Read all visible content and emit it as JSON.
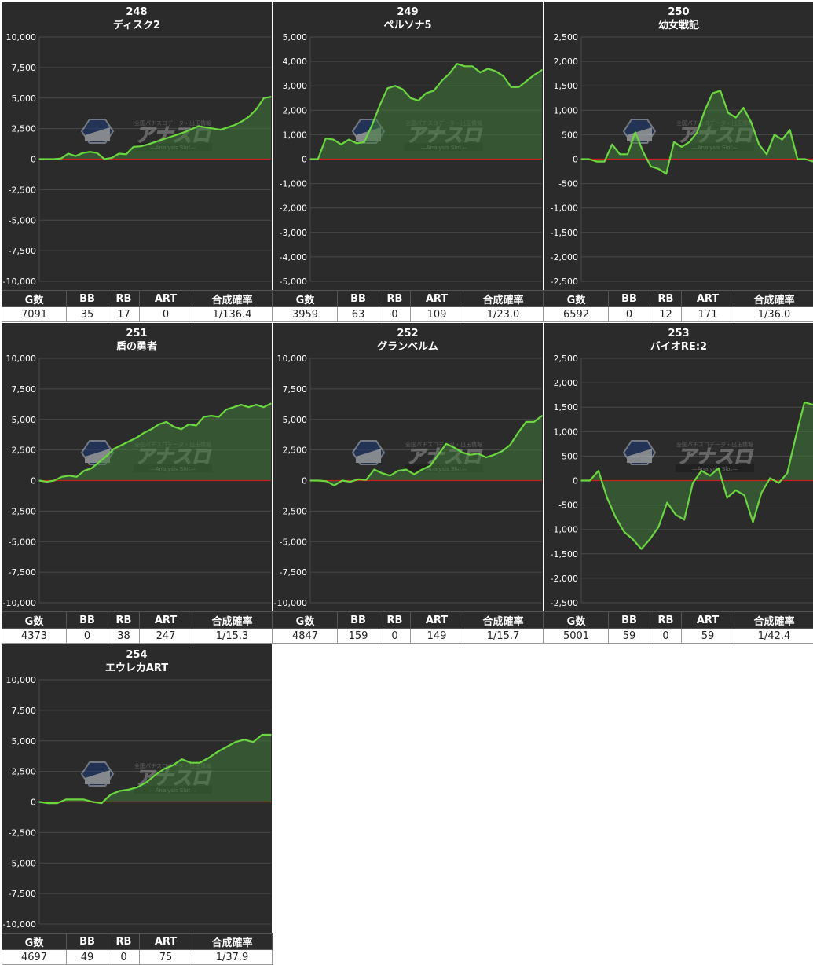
{
  "colors": {
    "line": "#6bd640",
    "fill": "#3f7a3a",
    "zero": "#c81e1e",
    "bg": "#2b2b2b",
    "grid": "#4a4a4a"
  },
  "watermark": {
    "brand": "アナスロ",
    "sub": "—Analysis Slot—",
    "tagline": "全国パチスロデータ・出玉情報"
  },
  "table_headers": [
    "G数",
    "BB",
    "RB",
    "ART",
    "合成確率"
  ],
  "chart_data": [
    {
      "type": "line",
      "number": "248",
      "name": "ディスク2",
      "ylim": [
        -10000,
        10000
      ],
      "yticks": [
        "10,000",
        "7,500",
        "5,000",
        "2,500",
        "0",
        "-2,500",
        "-5,000",
        "-7,500",
        "-10,000"
      ],
      "values": [
        0,
        0,
        0,
        50,
        450,
        250,
        500,
        600,
        500,
        0,
        100,
        450,
        400,
        1000,
        1050,
        1200,
        1400,
        1600,
        1800,
        2000,
        2200,
        2450,
        2700,
        2600,
        2500,
        2400,
        2600,
        2800,
        3100,
        3500,
        4100,
        5000,
        5100
      ],
      "stats": {
        "g": "7091",
        "bb": "35",
        "rb": "17",
        "art": "0",
        "rate": "1/136.4"
      }
    },
    {
      "type": "line",
      "number": "249",
      "name": "ペルソナ5",
      "ylim": [
        -5000,
        5000
      ],
      "yticks": [
        "5,000",
        "4,000",
        "3,000",
        "2,000",
        "1,000",
        "0",
        "-1,000",
        "-2,000",
        "-3,000",
        "-4,000",
        "-5,000"
      ],
      "values": [
        0,
        0,
        850,
        800,
        600,
        800,
        650,
        700,
        1400,
        2200,
        2900,
        3000,
        2850,
        2500,
        2400,
        2700,
        2800,
        3200,
        3500,
        3900,
        3800,
        3800,
        3550,
        3700,
        3600,
        3400,
        2950,
        2950,
        3200,
        3450,
        3650
      ],
      "stats": {
        "g": "3959",
        "bb": "63",
        "rb": "0",
        "art": "109",
        "rate": "1/23.0"
      }
    },
    {
      "type": "line",
      "number": "250",
      "name": "幼女戦記",
      "ylim": [
        -2500,
        2500
      ],
      "yticks": [
        "2,500",
        "2,000",
        "1,500",
        "1,000",
        "500",
        "0",
        "-500",
        "-1,000",
        "-1,500",
        "-2,000",
        "-2,500"
      ],
      "values": [
        0,
        0,
        -50,
        -50,
        300,
        100,
        100,
        550,
        150,
        -150,
        -200,
        -300,
        350,
        250,
        350,
        550,
        1000,
        1350,
        1400,
        950,
        850,
        1050,
        750,
        300,
        100,
        500,
        400,
        600,
        0,
        0,
        -50
      ],
      "stats": {
        "g": "6592",
        "bb": "0",
        "rb": "12",
        "art": "171",
        "rate": "1/36.0"
      }
    },
    {
      "type": "line",
      "number": "251",
      "name": "盾の勇者",
      "ylim": [
        -10000,
        10000
      ],
      "yticks": [
        "10,000",
        "7,500",
        "5,000",
        "2,500",
        "0",
        "-2,500",
        "-5,000",
        "-7,500",
        "-10,000"
      ],
      "values": [
        0,
        -100,
        0,
        300,
        400,
        300,
        800,
        1000,
        1500,
        2000,
        2600,
        2900,
        3200,
        3500,
        3900,
        4200,
        4600,
        4800,
        4400,
        4200,
        4600,
        4500,
        5200,
        5300,
        5200,
        5800,
        6000,
        6200,
        6000,
        6200,
        6000,
        6300
      ],
      "stats": {
        "g": "4373",
        "bb": "0",
        "rb": "38",
        "art": "247",
        "rate": "1/15.3"
      }
    },
    {
      "type": "line",
      "number": "252",
      "name": "グランベルム",
      "ylim": [
        -10000,
        10000
      ],
      "yticks": [
        "10,000",
        "7,500",
        "5,000",
        "2,500",
        "0",
        "-2,500",
        "-5,000",
        "-7,500",
        "-10,000"
      ],
      "values": [
        0,
        0,
        -50,
        -400,
        0,
        -100,
        100,
        50,
        900,
        600,
        400,
        800,
        900,
        500,
        900,
        1200,
        2100,
        3000,
        2700,
        2300,
        2100,
        2200,
        1900,
        2100,
        2400,
        2900,
        3900,
        4800,
        4800,
        5300
      ],
      "stats": {
        "g": "4847",
        "bb": "159",
        "rb": "0",
        "art": "149",
        "rate": "1/15.7"
      }
    },
    {
      "type": "line",
      "number": "253",
      "name": "バイオRE:2",
      "ylim": [
        -2500,
        2500
      ],
      "yticks": [
        "2,500",
        "2,000",
        "1,500",
        "1,000",
        "500",
        "0",
        "-500",
        "-1,000",
        "-1,500",
        "-2,000",
        "-2,500"
      ],
      "values": [
        0,
        0,
        200,
        -350,
        -750,
        -1050,
        -1200,
        -1400,
        -1200,
        -950,
        -450,
        -700,
        -800,
        -50,
        200,
        100,
        250,
        -350,
        -200,
        -300,
        -850,
        -250,
        50,
        -50,
        150,
        900,
        1600,
        1550
      ],
      "stats": {
        "g": "5001",
        "bb": "59",
        "rb": "0",
        "art": "59",
        "rate": "1/42.4"
      }
    },
    {
      "type": "line",
      "number": "254",
      "name": "エウレカART",
      "ylim": [
        -10000,
        10000
      ],
      "yticks": [
        "10,000",
        "7,500",
        "5,000",
        "2,500",
        "0",
        "-2,500",
        "-5,000",
        "-7,500",
        "-10,000"
      ],
      "values": [
        0,
        -100,
        -100,
        200,
        200,
        200,
        0,
        -100,
        600,
        900,
        1000,
        1200,
        1600,
        2200,
        2700,
        3000,
        3500,
        3200,
        3200,
        3600,
        4100,
        4500,
        4900,
        5100,
        4900,
        5500,
        5500
      ],
      "stats": {
        "g": "4697",
        "bb": "49",
        "rb": "0",
        "art": "75",
        "rate": "1/37.9"
      }
    }
  ]
}
